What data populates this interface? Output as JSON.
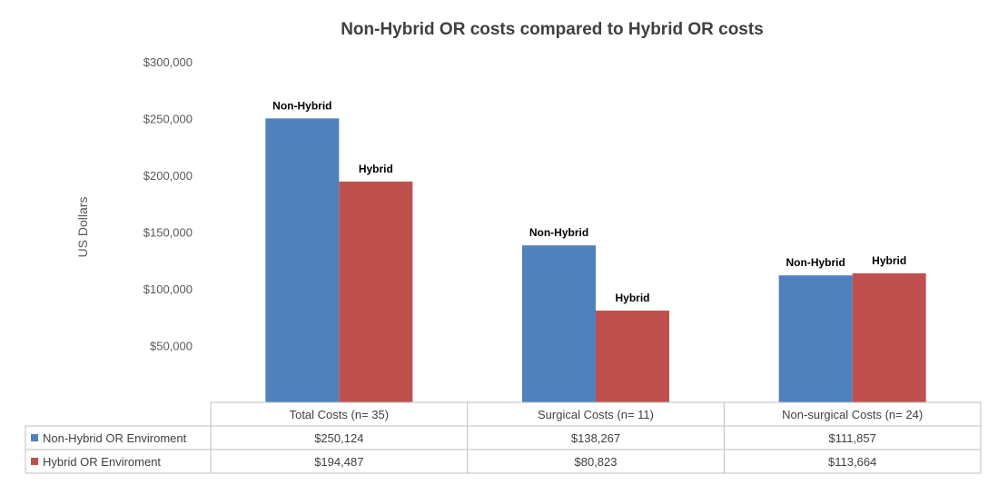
{
  "chart_data": {
    "type": "bar",
    "title": "Non-Hybrid OR costs compared to Hybrid OR costs",
    "ylabel": "US Dollars",
    "xlabel": "",
    "ylim": [
      0,
      300000
    ],
    "yticks": [
      50000,
      100000,
      150000,
      200000,
      250000,
      300000
    ],
    "ytick_labels": [
      "$50,000",
      "$100,000",
      "$150,000",
      "$200,000",
      "$250,000",
      "$300,000"
    ],
    "categories": [
      "Total Costs (n= 35)",
      "Surgical Costs (n= 11)",
      "Non-surgical Costs (n= 24)"
    ],
    "series": [
      {
        "name": "Non-Hybrid OR Enviroment",
        "bar_label": "Non-Hybrid",
        "color": "#4f81bd",
        "values": [
          250124,
          138267,
          111857
        ],
        "value_labels": [
          "$250,124",
          "$138,267",
          "$111,857"
        ]
      },
      {
        "name": "Hybrid OR Enviroment",
        "bar_label": "Hybrid",
        "color": "#c0504d",
        "values": [
          194487,
          80823,
          113664
        ],
        "value_labels": [
          "$194,487",
          "$80,823",
          "$113,664"
        ]
      }
    ],
    "grid": false,
    "legend": "data-table"
  }
}
